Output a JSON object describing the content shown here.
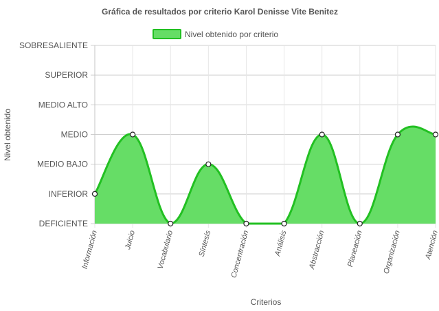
{
  "chart_data": {
    "type": "area",
    "title": "Gráfica de resultados por criterio Karol Denisse Vite Benitez",
    "xlabel": "Criterios",
    "ylabel": "Nivel obtenido",
    "categories": [
      "Información",
      "Juicio",
      "Vocabulario",
      "Síntesis",
      "Concentración",
      "Análisis",
      "Abstracción",
      "Planeación",
      "Organización",
      "Atención"
    ],
    "y_levels": [
      "DEFICIENTE",
      "INFERIOR",
      "MEDIO BAJO",
      "MEDIO",
      "MEDIO ALTO",
      "SUPERIOR",
      "SOBRESALIENTE"
    ],
    "ylim": [
      0,
      6
    ],
    "series": [
      {
        "name": "Nivel obtenido por criterio",
        "values": [
          1,
          3,
          0,
          2,
          0,
          0,
          3,
          0,
          3,
          3
        ],
        "fill_color": "#66dd66",
        "line_color": "#22c022"
      }
    ],
    "grid": true,
    "legend_position": "top"
  }
}
